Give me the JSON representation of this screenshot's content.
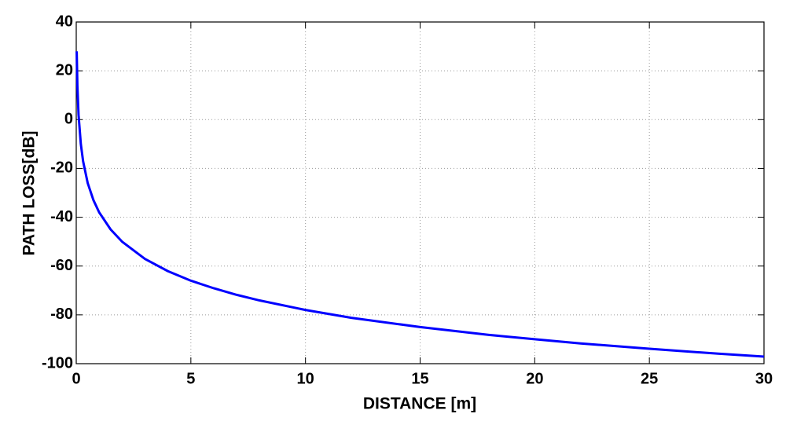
{
  "chart_data": {
    "type": "line",
    "xlabel": "DISTANCE [m]",
    "ylabel": "PATH LOSS[dB]",
    "x": [
      0.02,
      0.05,
      0.1,
      0.2,
      0.3,
      0.5,
      0.75,
      1,
      1.5,
      2,
      3,
      4,
      5,
      6,
      7,
      8,
      10,
      12,
      15,
      18,
      20,
      22,
      25,
      28,
      30
    ],
    "series": [
      {
        "color": "#0000ff",
        "values": [
          28,
          14,
          2,
          -10,
          -17.1,
          -26,
          -33,
          -38,
          -45,
          -50,
          -57.1,
          -62.1,
          -66,
          -69.1,
          -71.8,
          -74.1,
          -78,
          -81.2,
          -85,
          -88.2,
          -90,
          -91.7,
          -93.9,
          -95.9,
          -97.1
        ]
      }
    ],
    "xlim": [
      0,
      30
    ],
    "xticks": [
      0,
      5,
      10,
      15,
      20,
      25,
      30
    ],
    "ylim": [
      -100,
      40
    ],
    "yticks": [
      -100,
      -80,
      -60,
      -40,
      -20,
      0,
      20,
      40
    ],
    "grid": true
  }
}
